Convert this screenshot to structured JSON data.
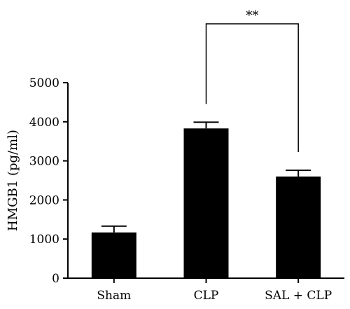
{
  "chart_data": {
    "type": "bar",
    "title": "",
    "xlabel": "",
    "ylabel": "HMGB1 (pg/ml)",
    "categories": [
      "Sham",
      "CLP",
      "SAL + CLP"
    ],
    "values": [
      1170,
      3830,
      2600
    ],
    "error_upper": [
      1330,
      3990,
      2760
    ],
    "ylim": [
      0,
      5000
    ],
    "yticks": [
      "0",
      "1000",
      "2000",
      "3000",
      "4000",
      "5000"
    ],
    "ytick_values": [
      0,
      1000,
      2000,
      3000,
      4000,
      5000
    ],
    "bar_color": "#000000",
    "grid": false,
    "legend": "none",
    "significance": {
      "from": "CLP",
      "to": "SAL + CLP",
      "label": "**"
    }
  }
}
